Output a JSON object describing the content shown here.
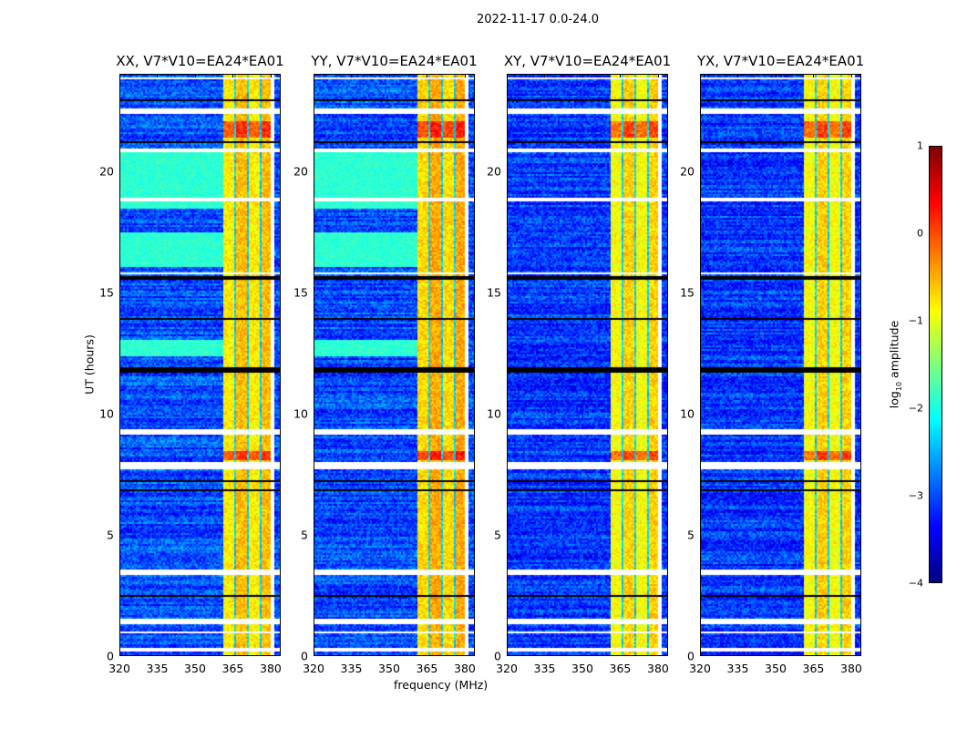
{
  "figure": {
    "suptitle": "2022-11-17 0.0-24.0",
    "xlabel": "frequency (MHz)",
    "ylabel": "UT (hours)"
  },
  "colorbar": {
    "label_prefix": "log",
    "label_sub": "10",
    "label_suffix": " amplitude",
    "ticks": [
      "1",
      "0",
      "−1",
      "−2",
      "−3",
      "−4"
    ],
    "range": [
      -4,
      1
    ],
    "colormap": "jet"
  },
  "chart_data": [
    {
      "type": "heatmap",
      "title": "XX, V7*V10=EA24*EA01",
      "xlim": [
        320,
        384
      ],
      "ylim": [
        0,
        24
      ],
      "xticks": [
        "320",
        "335",
        "350",
        "365",
        "380"
      ],
      "yticks": [
        "0",
        "5",
        "10",
        "15",
        "20"
      ],
      "rfi_band_mhz": [
        361,
        380
      ],
      "background_log_amp": -3,
      "band_log_amp": -0.8,
      "green_hours": [
        [
          12.4,
          13.1
        ],
        [
          16.1,
          17.5
        ],
        [
          18.5,
          20.8
        ]
      ]
    },
    {
      "type": "heatmap",
      "title": "YY, V7*V10=EA24*EA01",
      "xlim": [
        320,
        384
      ],
      "ylim": [
        0,
        24
      ],
      "xticks": [
        "320",
        "335",
        "350",
        "365",
        "380"
      ],
      "yticks": [
        "0",
        "5",
        "10",
        "15",
        "20"
      ],
      "rfi_band_mhz": [
        361,
        380
      ],
      "background_log_amp": -3,
      "band_log_amp": -0.7,
      "green_hours": [
        [
          12.4,
          13.1
        ],
        [
          16.1,
          17.5
        ],
        [
          18.5,
          20.8
        ]
      ]
    },
    {
      "type": "heatmap",
      "title": "XY, V7*V10=EA24*EA01",
      "xlim": [
        320,
        384
      ],
      "ylim": [
        0,
        24
      ],
      "xticks": [
        "320",
        "335",
        "350",
        "365",
        "380"
      ],
      "yticks": [
        "0",
        "5",
        "10",
        "15",
        "20"
      ],
      "rfi_band_mhz": [
        361,
        380
      ],
      "background_log_amp": -3.1,
      "band_log_amp": -0.9,
      "green_hours": []
    },
    {
      "type": "heatmap",
      "title": "YX, V7*V10=EA24*EA01",
      "xlim": [
        320,
        384
      ],
      "ylim": [
        0,
        24
      ],
      "xticks": [
        "320",
        "335",
        "350",
        "365",
        "380"
      ],
      "yticks": [
        "0",
        "5",
        "10",
        "15",
        "20"
      ],
      "rfi_band_mhz": [
        361,
        380
      ],
      "background_log_amp": -3.1,
      "band_log_amp": -0.9,
      "green_hours": []
    }
  ],
  "flagged_hours": [
    [
      0.25,
      0.35
    ],
    [
      0.95,
      1.05
    ],
    [
      1.35,
      1.55
    ],
    [
      2.3,
      2.35
    ],
    [
      3.35,
      3.6
    ],
    [
      7.75,
      8.0
    ],
    [
      9.2,
      9.4
    ],
    [
      15.75,
      15.85
    ],
    [
      18.8,
      18.9
    ],
    [
      20.8,
      20.95
    ],
    [
      22.35,
      22.6
    ],
    [
      23.8,
      23.9
    ]
  ],
  "dead_hours": [
    [
      2.5,
      2.55
    ],
    [
      6.85,
      6.9
    ],
    [
      7.2,
      7.25
    ],
    [
      11.75,
      11.95
    ],
    [
      13.9,
      13.95
    ],
    [
      15.55,
      15.7
    ],
    [
      16.3,
      16.33
    ],
    [
      21.2,
      21.25
    ],
    [
      22.9,
      22.95
    ]
  ]
}
